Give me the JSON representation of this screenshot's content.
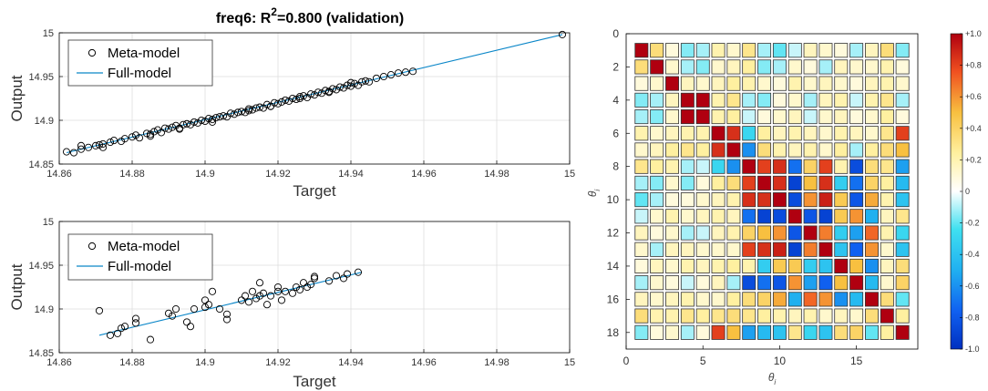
{
  "chart_data": [
    {
      "type": "scatter",
      "title": "freq6: R ²=0.800 (validation)",
      "title_prefix": "freq6: R",
      "title_sup": "2",
      "title_suffix": "=0.800 (validation)",
      "xlabel": "Target",
      "ylabel": "Output",
      "xlim": [
        14.86,
        15.0
      ],
      "ylim": [
        14.85,
        15.0
      ],
      "xticks": [
        "14.86",
        "14.88",
        "14.9",
        "14.92",
        "14.94",
        "14.96",
        "14.98",
        "15"
      ],
      "yticks": [
        "14.85",
        "14.9",
        "14.95",
        "15"
      ],
      "legend": {
        "position": "top-left",
        "entries": [
          "Meta-model",
          "Full-model"
        ]
      },
      "full_model_line": {
        "x": [
          14.862,
          14.998
        ],
        "y": [
          14.863,
          14.998
        ]
      },
      "meta_model_points": {
        "x": [
          14.862,
          14.864,
          14.866,
          14.868,
          14.87,
          14.871,
          14.872,
          14.874,
          14.875,
          14.877,
          14.878,
          14.88,
          14.881,
          14.882,
          14.884,
          14.885,
          14.886,
          14.887,
          14.888,
          14.889,
          14.89,
          14.891,
          14.892,
          14.893,
          14.894,
          14.895,
          14.896,
          14.897,
          14.898,
          14.899,
          14.9,
          14.901,
          14.902,
          14.903,
          14.904,
          14.905,
          14.906,
          14.907,
          14.908,
          14.909,
          14.91,
          14.911,
          14.912,
          14.913,
          14.914,
          14.915,
          14.916,
          14.917,
          14.918,
          14.919,
          14.92,
          14.921,
          14.922,
          14.923,
          14.924,
          14.925,
          14.926,
          14.927,
          14.928,
          14.929,
          14.93,
          14.931,
          14.932,
          14.933,
          14.934,
          14.935,
          14.936,
          14.937,
          14.938,
          14.939,
          14.94,
          14.941,
          14.942,
          14.943,
          14.944,
          14.945,
          14.947,
          14.949,
          14.951,
          14.953,
          14.955,
          14.957,
          14.998,
          14.866,
          14.872,
          14.885,
          14.893,
          14.902,
          14.912,
          14.918,
          14.926,
          14.934,
          14.94
        ],
        "y": [
          14.864,
          14.863,
          14.867,
          14.869,
          14.871,
          14.872,
          14.869,
          14.875,
          14.877,
          14.876,
          14.879,
          14.881,
          14.883,
          14.88,
          14.885,
          14.884,
          14.887,
          14.889,
          14.886,
          14.891,
          14.89,
          14.892,
          14.894,
          14.891,
          14.895,
          14.896,
          14.895,
          14.898,
          14.897,
          14.9,
          14.899,
          14.902,
          14.901,
          14.903,
          14.904,
          14.905,
          14.904,
          14.908,
          14.907,
          14.909,
          14.91,
          14.909,
          14.913,
          14.912,
          14.914,
          14.915,
          14.914,
          14.918,
          14.916,
          14.92,
          14.919,
          14.921,
          14.923,
          14.922,
          14.925,
          14.924,
          14.927,
          14.928,
          14.926,
          14.93,
          14.929,
          14.932,
          14.931,
          14.934,
          14.933,
          14.936,
          14.935,
          14.938,
          14.937,
          14.94,
          14.939,
          14.942,
          14.94,
          14.944,
          14.945,
          14.944,
          14.948,
          14.95,
          14.952,
          14.954,
          14.955,
          14.956,
          14.998,
          14.871,
          14.873,
          14.882,
          14.89,
          14.898,
          14.911,
          14.916,
          14.925,
          14.932,
          14.943
        ]
      }
    },
    {
      "type": "scatter",
      "xlabel": "Target",
      "ylabel": "Output",
      "xlim": [
        14.86,
        15.0
      ],
      "ylim": [
        14.85,
        15.0
      ],
      "xticks": [
        "14.86",
        "14.88",
        "14.9",
        "14.92",
        "14.94",
        "14.96",
        "14.98",
        "15"
      ],
      "yticks": [
        "14.85",
        "14.9",
        "14.95",
        "15"
      ],
      "legend": {
        "position": "top-left",
        "entries": [
          "Meta-model",
          "Full-model"
        ]
      },
      "full_model_line": {
        "x": [
          14.871,
          14.943
        ],
        "y": [
          14.87,
          14.942
        ]
      },
      "meta_model_points": {
        "x": [
          14.871,
          14.874,
          14.876,
          14.877,
          14.878,
          14.881,
          14.881,
          14.885,
          14.89,
          14.891,
          14.892,
          14.895,
          14.896,
          14.897,
          14.9,
          14.901,
          14.9,
          14.902,
          14.904,
          14.906,
          14.906,
          14.91,
          14.911,
          14.912,
          14.913,
          14.914,
          14.915,
          14.915,
          14.916,
          14.917,
          14.918,
          14.92,
          14.92,
          14.921,
          14.922,
          14.924,
          14.925,
          14.926,
          14.927,
          14.928,
          14.929,
          14.93,
          14.93,
          14.934,
          14.936,
          14.938,
          14.939,
          14.942
        ],
        "y": [
          14.898,
          14.87,
          14.872,
          14.878,
          14.88,
          14.889,
          14.884,
          14.865,
          14.895,
          14.892,
          14.9,
          14.885,
          14.88,
          14.9,
          14.902,
          14.905,
          14.91,
          14.92,
          14.9,
          14.894,
          14.888,
          14.91,
          14.915,
          14.908,
          14.92,
          14.912,
          14.915,
          14.93,
          14.918,
          14.905,
          14.915,
          14.925,
          14.92,
          14.91,
          14.92,
          14.918,
          14.925,
          14.922,
          14.93,
          14.925,
          14.928,
          14.935,
          14.937,
          14.932,
          14.938,
          14.935,
          14.94,
          14.942
        ]
      }
    },
    {
      "type": "heatmap",
      "xlabel": "θi",
      "ylabel": "θi",
      "xlabel_main": "θ",
      "xlabel_sub": "i",
      "ylabel_main": "θ",
      "ylabel_sub": "i",
      "xlim": [
        0,
        19
      ],
      "ylim": [
        0,
        19
      ],
      "xticks": [
        "0",
        "5",
        "10",
        "15"
      ],
      "yticks": [
        "0",
        "2",
        "4",
        "6",
        "8",
        "10",
        "12",
        "14",
        "16",
        "18"
      ],
      "colorbar": {
        "ticks": [
          "+1.0",
          "+0.8",
          "+0.6",
          "+0.4",
          "+0.2",
          "0",
          "-0.2",
          "-0.4",
          "-0.6",
          "-0.8",
          "-1.0"
        ],
        "range": [
          -1,
          1
        ]
      },
      "matrix": [
        [
          1.0,
          0.35,
          0.05,
          -0.15,
          -0.1,
          0.2,
          0.1,
          0.3,
          -0.1,
          -0.2,
          -0.05,
          0.15,
          0.1,
          0.05,
          -0.1,
          0.15,
          0.35,
          -0.15
        ],
        [
          0.35,
          1.0,
          0.1,
          -0.1,
          -0.15,
          0.1,
          0.15,
          0.25,
          -0.15,
          -0.1,
          0.1,
          0.05,
          -0.1,
          0.15,
          0.1,
          0.1,
          0.2,
          0.05
        ],
        [
          0.05,
          0.1,
          1.0,
          0.15,
          0.1,
          0.15,
          0.25,
          0.2,
          0.1,
          0.05,
          0.2,
          0.1,
          0.15,
          0.1,
          0.05,
          0.15,
          0.2,
          0.1
        ],
        [
          -0.15,
          -0.1,
          0.15,
          1.0,
          1.0,
          0.2,
          0.3,
          -0.1,
          -0.15,
          0.05,
          0.1,
          -0.1,
          0.15,
          0.2,
          -0.05,
          0.2,
          0.3,
          -0.1
        ],
        [
          -0.1,
          -0.15,
          0.1,
          1.0,
          1.0,
          0.2,
          0.25,
          -0.05,
          0.05,
          0.1,
          0.15,
          -0.05,
          0.1,
          0.15,
          0.05,
          0.1,
          0.25,
          0.05
        ],
        [
          0.2,
          0.1,
          0.15,
          0.2,
          0.2,
          1.0,
          0.85,
          -0.3,
          0.25,
          0.15,
          0.2,
          0.15,
          0.1,
          0.2,
          0.15,
          0.1,
          0.3,
          0.8
        ],
        [
          0.1,
          0.15,
          0.25,
          0.3,
          0.25,
          0.85,
          1.0,
          -0.6,
          0.35,
          0.2,
          0.15,
          0.2,
          0.1,
          0.25,
          -0.1,
          0.25,
          0.35,
          0.5
        ],
        [
          0.3,
          0.25,
          0.2,
          -0.1,
          -0.05,
          -0.3,
          -0.6,
          1.0,
          0.8,
          0.85,
          -0.7,
          0.4,
          0.8,
          0.2,
          -0.85,
          0.35,
          0.3,
          -0.55
        ],
        [
          -0.1,
          -0.15,
          0.1,
          -0.15,
          0.05,
          0.25,
          0.35,
          0.8,
          1.0,
          0.85,
          -0.9,
          0.5,
          0.85,
          -0.35,
          -0.7,
          0.4,
          0.25,
          -0.45
        ],
        [
          -0.2,
          -0.1,
          0.05,
          0.05,
          0.1,
          0.15,
          0.2,
          0.85,
          0.85,
          1.0,
          -0.85,
          0.6,
          0.9,
          0.45,
          -0.8,
          0.55,
          0.2,
          -0.4
        ],
        [
          -0.05,
          0.1,
          0.2,
          0.1,
          0.15,
          0.2,
          0.15,
          -0.7,
          -0.9,
          -0.85,
          1.0,
          -0.8,
          -0.9,
          0.45,
          0.6,
          -0.5,
          0.15,
          0.3
        ],
        [
          0.15,
          0.05,
          0.1,
          -0.1,
          -0.05,
          0.15,
          0.2,
          0.4,
          0.5,
          0.6,
          -0.8,
          1.0,
          0.65,
          -0.35,
          -0.55,
          0.7,
          0.2,
          -0.3
        ],
        [
          0.1,
          -0.1,
          0.15,
          0.15,
          0.1,
          0.1,
          0.1,
          0.8,
          0.85,
          0.9,
          -0.9,
          0.65,
          1.0,
          -0.4,
          -0.75,
          0.6,
          0.1,
          -0.4
        ],
        [
          0.05,
          0.15,
          0.1,
          0.2,
          0.15,
          0.2,
          0.25,
          0.2,
          -0.35,
          0.45,
          0.45,
          -0.35,
          -0.4,
          1.0,
          0.5,
          -0.6,
          0.15,
          0.35
        ],
        [
          -0.1,
          0.1,
          0.05,
          -0.05,
          0.05,
          0.15,
          -0.1,
          -0.85,
          -0.7,
          -0.8,
          0.6,
          -0.55,
          -0.75,
          0.5,
          1.0,
          -0.45,
          0.1,
          0.4
        ],
        [
          0.15,
          0.1,
          0.15,
          0.2,
          0.1,
          0.1,
          0.25,
          0.35,
          0.4,
          0.55,
          -0.5,
          0.7,
          0.6,
          -0.6,
          -0.45,
          1.0,
          0.35,
          -0.2
        ],
        [
          0.35,
          0.2,
          0.2,
          0.3,
          0.25,
          0.3,
          0.35,
          0.3,
          0.25,
          0.2,
          0.15,
          0.2,
          0.1,
          0.15,
          0.1,
          0.35,
          1.0,
          0.25
        ],
        [
          -0.15,
          0.05,
          0.1,
          -0.1,
          0.05,
          0.8,
          0.5,
          -0.55,
          -0.45,
          -0.4,
          0.3,
          -0.3,
          -0.4,
          0.35,
          0.4,
          -0.2,
          0.25,
          1.0
        ]
      ]
    }
  ]
}
